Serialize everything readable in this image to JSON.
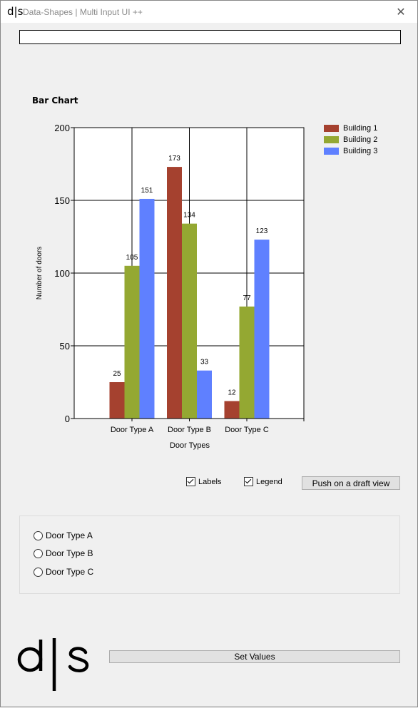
{
  "window": {
    "title": "Data-Shapes | Multi Input UI ++",
    "logo_small": "d|s",
    "close_label": "✕"
  },
  "top_input": {
    "value": ""
  },
  "chart_data": {
    "type": "bar",
    "title": "Bar Chart",
    "xlabel": "Door Types",
    "ylabel": "Number of doors",
    "categories": [
      "Door Type A",
      "Door Type B",
      "Door Type C"
    ],
    "ylim": [
      0,
      200
    ],
    "yticks": [
      0,
      50,
      100,
      150,
      200
    ],
    "grid": true,
    "legend_position": "top-right",
    "series": [
      {
        "name": "Building 1",
        "color": "#a5412f",
        "values": [
          25,
          173,
          12
        ]
      },
      {
        "name": "Building 2",
        "color": "#94a832",
        "values": [
          105,
          134,
          77
        ]
      },
      {
        "name": "Building 3",
        "color": "#5f80ff",
        "values": [
          151,
          33,
          123
        ]
      }
    ]
  },
  "controls": {
    "labels_checkbox": {
      "label": "Labels",
      "checked": true
    },
    "legend_checkbox": {
      "label": "Legend",
      "checked": true
    },
    "push_button": "Push on a draft view"
  },
  "radio_options": [
    "Door Type A",
    "Door Type B",
    "Door Type C"
  ],
  "footer": {
    "set_values_button": "Set Values",
    "logo": "d|s"
  }
}
